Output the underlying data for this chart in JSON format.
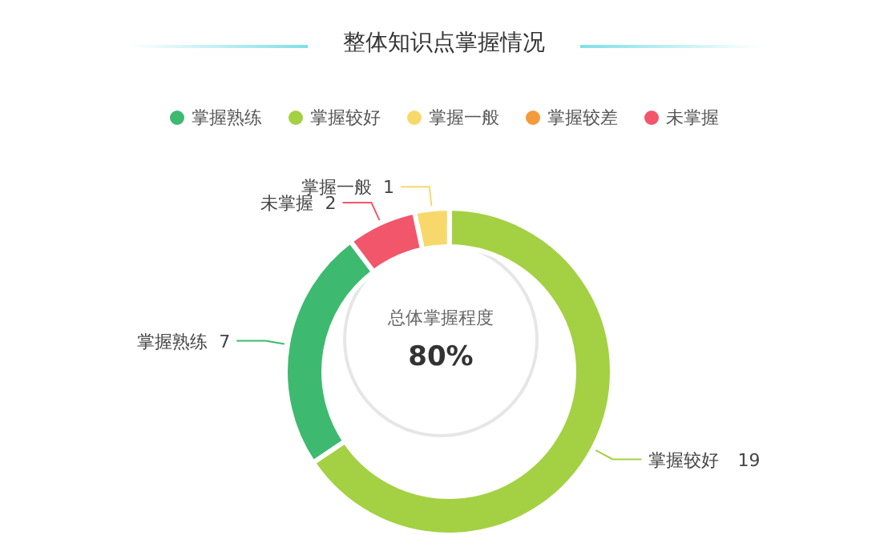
{
  "chart_data": {
    "type": "donut",
    "title": "整体知识点掌握情况",
    "categories": [
      "掌握熟练",
      "掌握较好",
      "掌握一般",
      "掌握较差",
      "未掌握"
    ],
    "values": [
      7,
      19,
      1,
      0,
      2
    ],
    "colors": [
      "#3dba6f",
      "#a3d143",
      "#f7d96b",
      "#f39a3b",
      "#f2566b"
    ],
    "legend": "top",
    "data_labels": true,
    "annotations": [
      "总体掌握程度",
      "80%"
    ]
  }
}
